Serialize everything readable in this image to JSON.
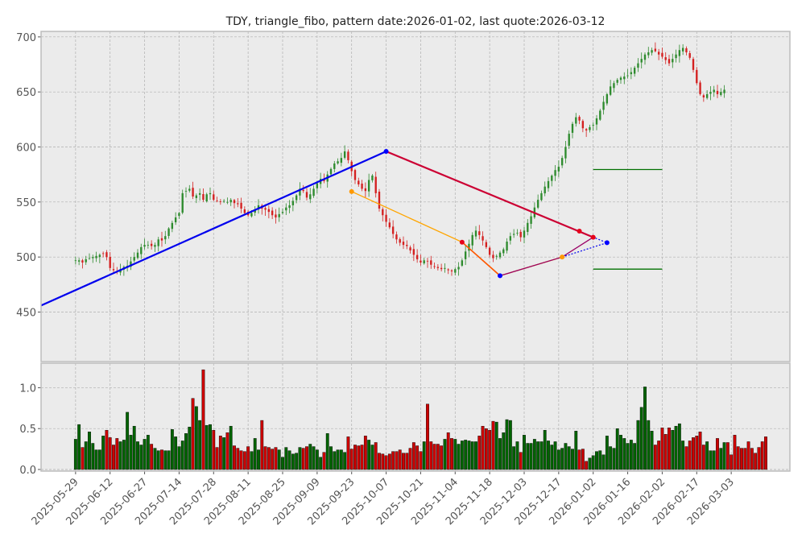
{
  "chart_data": {
    "type": "candlestick",
    "title": "TDY, triangle_fibo, pattern date:2026-01-02, last quote:2026-03-12",
    "price_panel": {
      "ylim": [
        405,
        705
      ],
      "yticks": [
        450,
        500,
        550,
        600,
        650,
        700
      ],
      "grid": true
    },
    "volume_panel": {
      "ylim": [
        -0.02,
        1.3
      ],
      "yticks": [
        0.0,
        0.5,
        1.0
      ],
      "ytick_labels": [
        "0.0",
        "0.5",
        "1.0"
      ],
      "grid": true
    },
    "x_ticks": [
      "2025-05-29",
      "2025-06-12",
      "2025-06-27",
      "2025-07-14",
      "2025-07-28",
      "2025-08-11",
      "2025-08-25",
      "2025-09-09",
      "2025-09-23",
      "2025-10-07",
      "2025-10-21",
      "2025-11-04",
      "2025-11-18",
      "2025-12-03",
      "2025-12-17",
      "2026-01-02",
      "2026-01-16",
      "2026-02-02",
      "2026-02-17",
      "2026-03-03"
    ],
    "x_tick_index": [
      0,
      10,
      20,
      30,
      40,
      50,
      60,
      70,
      80,
      90,
      100,
      110,
      120,
      130,
      140,
      150,
      160,
      170,
      180,
      190
    ],
    "x_range": [
      -10,
      207
    ],
    "closes": [
      497,
      497,
      495,
      498,
      499,
      500,
      501,
      502,
      503,
      500,
      490,
      488,
      487,
      489,
      491,
      492,
      496,
      500,
      504,
      509,
      511,
      511,
      510,
      511,
      516,
      515,
      519,
      526,
      531,
      536,
      540,
      558,
      560,
      562,
      555,
      556,
      558,
      552,
      557,
      558,
      552,
      551,
      550,
      551,
      550,
      552,
      549,
      548,
      544,
      540,
      538,
      540,
      543,
      547,
      544,
      543,
      541,
      538,
      536,
      539,
      541,
      545,
      547,
      551,
      556,
      562,
      560,
      554,
      557,
      562,
      567,
      571,
      569,
      575,
      580,
      585,
      587,
      590,
      596,
      588,
      578,
      570,
      566,
      562,
      560,
      570,
      574,
      558,
      544,
      538,
      532,
      527,
      521,
      516,
      513,
      511,
      510,
      506,
      502,
      498,
      495,
      497,
      496,
      493,
      491,
      490,
      489,
      490,
      488,
      487,
      489,
      491,
      497,
      505,
      512,
      520,
      524,
      520,
      515,
      509,
      502,
      499,
      501,
      504,
      507,
      514,
      519,
      521,
      522,
      518,
      524,
      531,
      537,
      545,
      552,
      558,
      564,
      569,
      574,
      579,
      582,
      590,
      600,
      612,
      621,
      627,
      624,
      617,
      615,
      618,
      620,
      626,
      633,
      641,
      648,
      655,
      658,
      661,
      663,
      664,
      665,
      668,
      672,
      676,
      680,
      684,
      686,
      688,
      687,
      684,
      682,
      679,
      676,
      680,
      684,
      688,
      690,
      686,
      681,
      670,
      658,
      648,
      645,
      648,
      650,
      652,
      648,
      650,
      652
    ],
    "volumes": [
      0.37,
      0.55,
      0.27,
      0.34,
      0.46,
      0.32,
      0.24,
      0.24,
      0.41,
      0.48,
      0.39,
      0.3,
      0.38,
      0.34,
      0.36,
      0.7,
      0.42,
      0.53,
      0.34,
      0.3,
      0.37,
      0.42,
      0.31,
      0.26,
      0.23,
      0.24,
      0.23,
      0.23,
      0.49,
      0.4,
      0.28,
      0.35,
      0.44,
      0.52,
      0.87,
      0.77,
      0.6,
      1.22,
      0.54,
      0.55,
      0.48,
      0.27,
      0.41,
      0.39,
      0.45,
      0.53,
      0.29,
      0.26,
      0.23,
      0.22,
      0.28,
      0.22,
      0.38,
      0.24,
      0.6,
      0.28,
      0.27,
      0.25,
      0.27,
      0.24,
      0.15,
      0.27,
      0.23,
      0.19,
      0.2,
      0.27,
      0.26,
      0.28,
      0.31,
      0.28,
      0.24,
      0.15,
      0.21,
      0.44,
      0.28,
      0.22,
      0.24,
      0.24,
      0.21,
      0.4,
      0.25,
      0.3,
      0.29,
      0.3,
      0.41,
      0.36,
      0.3,
      0.33,
      0.2,
      0.19,
      0.17,
      0.19,
      0.22,
      0.22,
      0.24,
      0.2,
      0.2,
      0.26,
      0.33,
      0.29,
      0.22,
      0.34,
      0.8,
      0.34,
      0.31,
      0.31,
      0.29,
      0.37,
      0.45,
      0.38,
      0.37,
      0.31,
      0.35,
      0.36,
      0.35,
      0.34,
      0.34,
      0.41,
      0.53,
      0.5,
      0.48,
      0.59,
      0.58,
      0.38,
      0.45,
      0.61,
      0.6,
      0.28,
      0.34,
      0.21,
      0.42,
      0.32,
      0.32,
      0.37,
      0.34,
      0.34,
      0.48,
      0.35,
      0.3,
      0.34,
      0.24,
      0.26,
      0.32,
      0.28,
      0.25,
      0.47,
      0.24,
      0.25,
      0.1,
      0.14,
      0.17,
      0.22,
      0.23,
      0.18,
      0.41,
      0.28,
      0.26,
      0.5,
      0.42,
      0.38,
      0.32,
      0.36,
      0.32,
      0.6,
      0.76,
      1.01,
      0.6,
      0.47,
      0.3,
      0.35,
      0.51,
      0.43,
      0.51,
      0.48,
      0.53,
      0.56,
      0.35,
      0.28,
      0.35,
      0.39,
      0.41,
      0.46,
      0.3,
      0.34,
      0.23,
      0.23,
      0.38,
      0.26,
      0.33,
      0.33,
      0.18,
      0.42,
      0.28,
      0.26,
      0.26,
      0.34,
      0.26,
      0.2,
      0.27,
      0.34,
      0.4
    ],
    "pattern_lines": {
      "blue_trend": [
        [
          -10,
          455.9
        ],
        [
          90,
          596.0
        ]
      ],
      "red_trend": [
        [
          90,
          596.0
        ],
        [
          150,
          518.0
        ]
      ],
      "orange_top": [
        [
          80,
          559.5
        ],
        [
          112,
          513.5
        ],
        [
          123,
          483.0
        ]
      ],
      "orange_bottom": [
        [
          123,
          483.0
        ],
        [
          141,
          500.0
        ]
      ],
      "red_leg": [
        [
          112,
          513.5
        ],
        [
          123,
          483.0
        ],
        [
          146,
          523.5
        ],
        [
          150,
          518.0
        ]
      ],
      "purple_bottom": [
        [
          123,
          483.0
        ],
        [
          141,
          500.0
        ],
        [
          150,
          518.0
        ]
      ],
      "blue_dotted": [
        [
          141,
          500.0
        ],
        [
          154,
          513.0
        ],
        [
          150,
          518.0
        ]
      ],
      "green_levels": [
        {
          "y": 579.5,
          "x": [
            150,
            170
          ]
        },
        {
          "y": 489.0,
          "x": [
            150,
            170
          ]
        }
      ]
    },
    "markers": [
      {
        "x": 90,
        "y": 596.0,
        "color": "#0000ff"
      },
      {
        "x": 123,
        "y": 483.0,
        "color": "#0000ff"
      },
      {
        "x": 154,
        "y": 513.0,
        "color": "#0000ff"
      },
      {
        "x": 146,
        "y": 523.5,
        "color": "#e6001a"
      },
      {
        "x": 150,
        "y": 518.0,
        "color": "#e6001a"
      },
      {
        "x": 80,
        "y": 559.5,
        "color": "#ff9900"
      },
      {
        "x": 112,
        "y": 513.5,
        "color": "#e6001a"
      },
      {
        "x": 141,
        "y": 500.0,
        "color": "#ff9900"
      }
    ],
    "colors": {
      "up": "#2e8b2e",
      "down": "#d42020",
      "vol_up": "#006400",
      "vol_down": "#cc0000",
      "panel_bg": "#ebebeb",
      "grid": "#b0b0b0",
      "blue_line": "#0000ee",
      "red_line": "#cc0033",
      "orange_line": "#ffa500",
      "orange_dark": "#ff5500",
      "purple_line": "#990066",
      "green_level": "#007000"
    }
  }
}
